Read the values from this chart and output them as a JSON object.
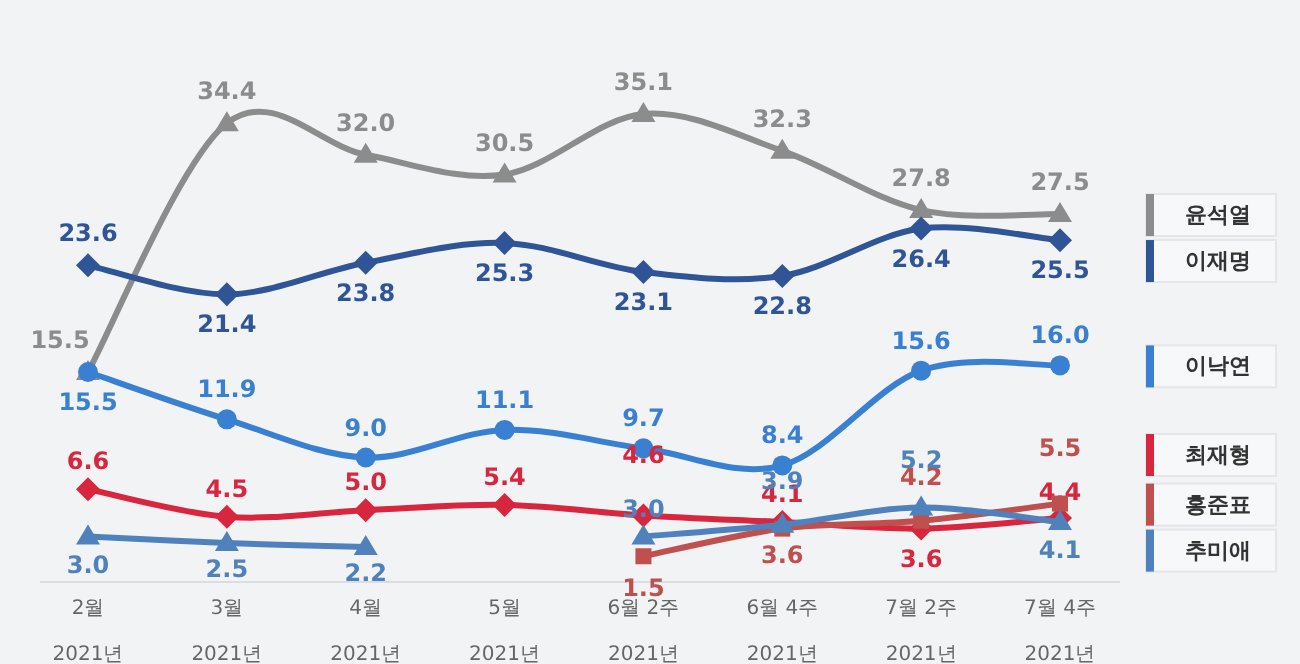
{
  "chart_data": {
    "type": "line",
    "categories": [
      "2월 2021년",
      "3월 2021년",
      "4월 2021년",
      "5월 2021년",
      "6월 2주 2021년",
      "6월 4주 2021년",
      "7월 2주 2021년",
      "7월 4주 2021년"
    ],
    "series": [
      {
        "name": "윤석열",
        "color": "#8c8c8c",
        "marker": "triangle",
        "values": [
          15.5,
          34.4,
          32.0,
          30.5,
          35.1,
          32.3,
          27.8,
          27.5
        ],
        "value_labels": [
          "15.5",
          "34.4",
          "32.0",
          "30.5",
          "35.1",
          "32.3",
          "27.8",
          "27.5"
        ]
      },
      {
        "name": "이재명",
        "color": "#2f5597",
        "marker": "diamond",
        "values": [
          23.6,
          21.4,
          23.8,
          25.3,
          23.1,
          22.8,
          26.4,
          25.5
        ],
        "value_labels": [
          "23.6",
          "21.4",
          "23.8",
          "25.3",
          "23.1",
          "22.8",
          "26.4",
          "25.5"
        ]
      },
      {
        "name": "이낙연",
        "color": "#3a80d2",
        "marker": "circle",
        "values": [
          15.5,
          11.9,
          9.0,
          11.1,
          9.7,
          8.4,
          15.6,
          16.0
        ],
        "value_labels": [
          "15.5",
          "11.9",
          "9.0",
          "11.1",
          "9.7",
          "8.4",
          "15.6",
          "16.0"
        ]
      },
      {
        "name": "최재형",
        "color": "#d7263d",
        "marker": "diamond",
        "values": [
          6.6,
          4.5,
          5.0,
          5.4,
          4.6,
          4.1,
          3.6,
          4.4
        ],
        "value_labels": [
          "6.6",
          "4.5",
          "5.0",
          "5.4",
          "4.6",
          "4.1",
          "3.6",
          "4.4"
        ]
      },
      {
        "name": "홍준표",
        "color": "#c0504d",
        "marker": "square",
        "values": [
          null,
          null,
          null,
          null,
          1.5,
          3.6,
          4.2,
          5.5
        ],
        "value_labels": [
          null,
          null,
          null,
          null,
          "1.5",
          "3.6",
          "4.2",
          "5.5"
        ]
      },
      {
        "name": "추미애",
        "color": "#4f81bd",
        "marker": "triangle",
        "values": [
          3.0,
          2.5,
          2.2,
          null,
          3.0,
          3.9,
          5.2,
          4.1
        ],
        "value_labels": [
          "3.0",
          "2.5",
          "2.2",
          null,
          "3.0",
          "3.9",
          "5.2",
          "4.1"
        ]
      }
    ],
    "legend": "right"
  }
}
